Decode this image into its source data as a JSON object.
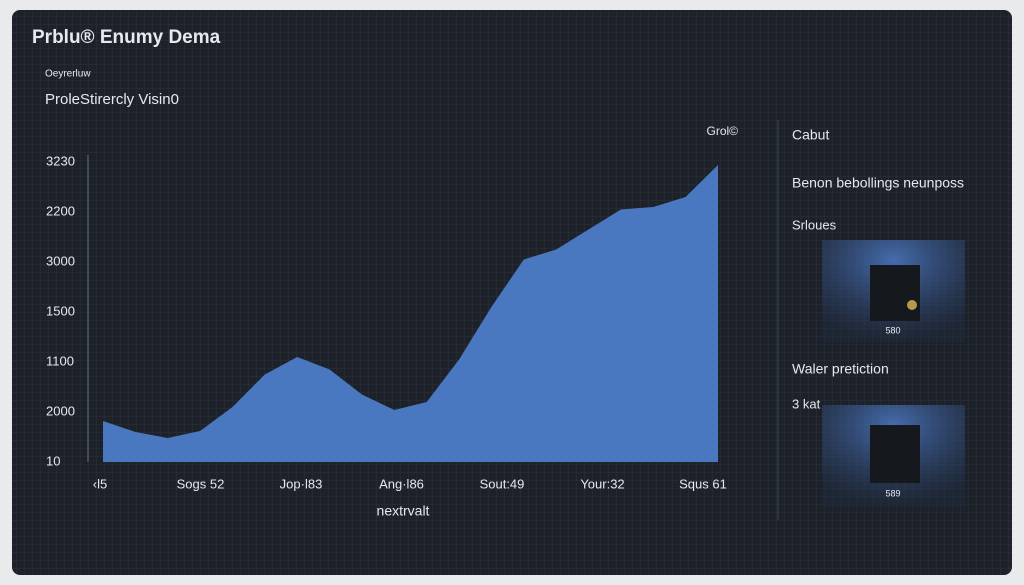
{
  "header": {
    "title": "Prblu® Enumy Dema",
    "caption": "Oeyrerluw",
    "subtitle": "ProleStirercly Visin0"
  },
  "chart_data": {
    "type": "area",
    "series_label": "Grol©",
    "y_labels": [
      "3230",
      "2200",
      "3000",
      "1500",
      "1100",
      "2000",
      "10"
    ],
    "x_labels": [
      "‹l5",
      "Sogs 52",
      "Jop·l83",
      "Ang·l86",
      "Sout:49",
      "Your:32",
      "Squs 61"
    ],
    "x_axis_label": "nextrvalt",
    "ylim": [
      0,
      6
    ],
    "color": "#4a78c0",
    "values": [
      0.82,
      0.6,
      0.48,
      0.62,
      1.1,
      1.75,
      2.1,
      1.85,
      1.35,
      1.04,
      1.2,
      2.05,
      3.1,
      4.05,
      4.25,
      4.65,
      5.05,
      5.1,
      5.3,
      5.94
    ]
  },
  "sidebar": {
    "heading": "Cabut",
    "line": "Benon bebollings neunposs",
    "section": "Srloues",
    "card1": "580",
    "section2": "Waler pretiction",
    "note": "3 kat",
    "card2": "589"
  }
}
